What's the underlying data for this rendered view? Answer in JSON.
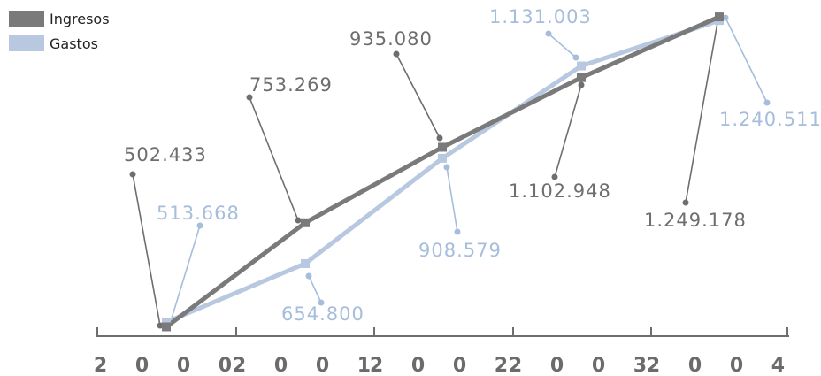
{
  "chart_data": {
    "type": "line",
    "categories": [
      "2000",
      "2001",
      "2002",
      "2003",
      "2004"
    ],
    "category_labels": [
      "2 0 0 0",
      "2 0 0 1",
      "2 0 0 2",
      "2 0 0 3",
      "2 0 0 4"
    ],
    "ylim": [
      480000,
      1260000
    ],
    "grid": false,
    "legend_position": "top-left",
    "series": [
      {
        "name": "Ingresos",
        "color": "#7a7a7a",
        "label_color": "#6e6e6e",
        "marker": "square",
        "values": [
          502433,
          753269,
          935080,
          1102948,
          1249178
        ],
        "value_labels": [
          "502.433",
          "753.269",
          "935.080",
          "1.102.948",
          "1.249.178"
        ]
      },
      {
        "name": "Gastos",
        "color": "#b7c8e0",
        "label_color": "#a6bddb",
        "marker": "square",
        "values": [
          513668,
          654800,
          908579,
          1131003,
          1240511
        ],
        "value_labels": [
          "513.668",
          "654.800",
          "908.579",
          "1.131.003",
          "1.240.511"
        ]
      }
    ]
  }
}
